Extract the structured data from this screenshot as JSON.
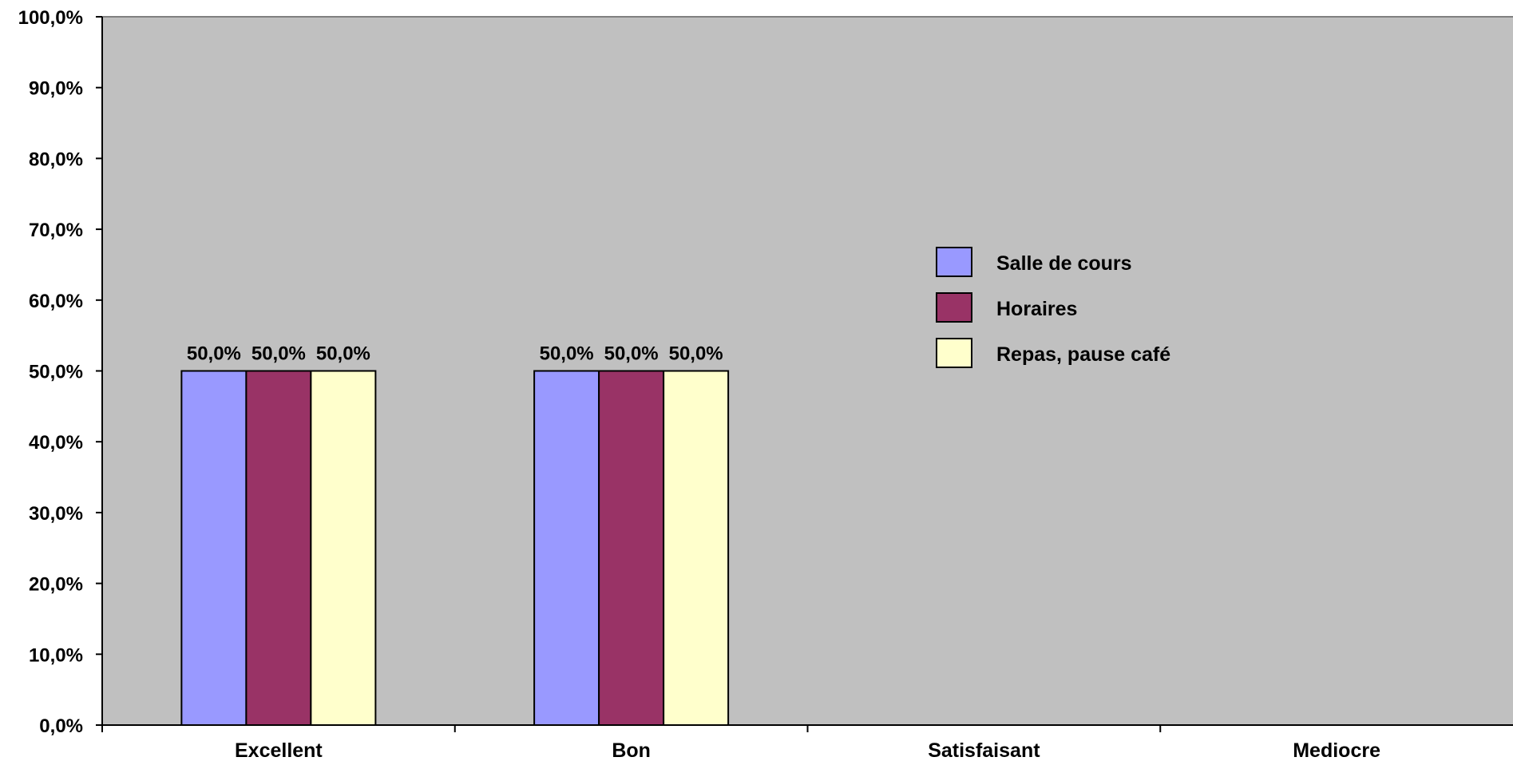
{
  "chart_data": {
    "type": "bar",
    "categories": [
      "Excellent",
      "Bon",
      "Satisfaisant",
      "Mediocre"
    ],
    "series": [
      {
        "name": "Salle de cours",
        "color": "#9999ff",
        "values": [
          50.0,
          50.0,
          0,
          0
        ],
        "labels": [
          "50,0%",
          "50,0%",
          "",
          ""
        ]
      },
      {
        "name": "Horaires",
        "color": "#993366",
        "values": [
          50.0,
          50.0,
          0,
          0
        ],
        "labels": [
          "50,0%",
          "50,0%",
          "",
          ""
        ]
      },
      {
        "name": "Repas, pause café",
        "color": "#ffffcc",
        "values": [
          50.0,
          50.0,
          0,
          0
        ],
        "labels": [
          "50,0%",
          "50,0%",
          "",
          ""
        ]
      }
    ],
    "ylim": [
      0,
      100
    ],
    "yticks": [
      "0,0%",
      "10,0%",
      "20,0%",
      "30,0%",
      "40,0%",
      "50,0%",
      "60,0%",
      "70,0%",
      "80,0%",
      "90,0%",
      "100,0%"
    ],
    "plot_background": "#c0c0c0",
    "grid": false,
    "legend_position": "right-middle"
  }
}
